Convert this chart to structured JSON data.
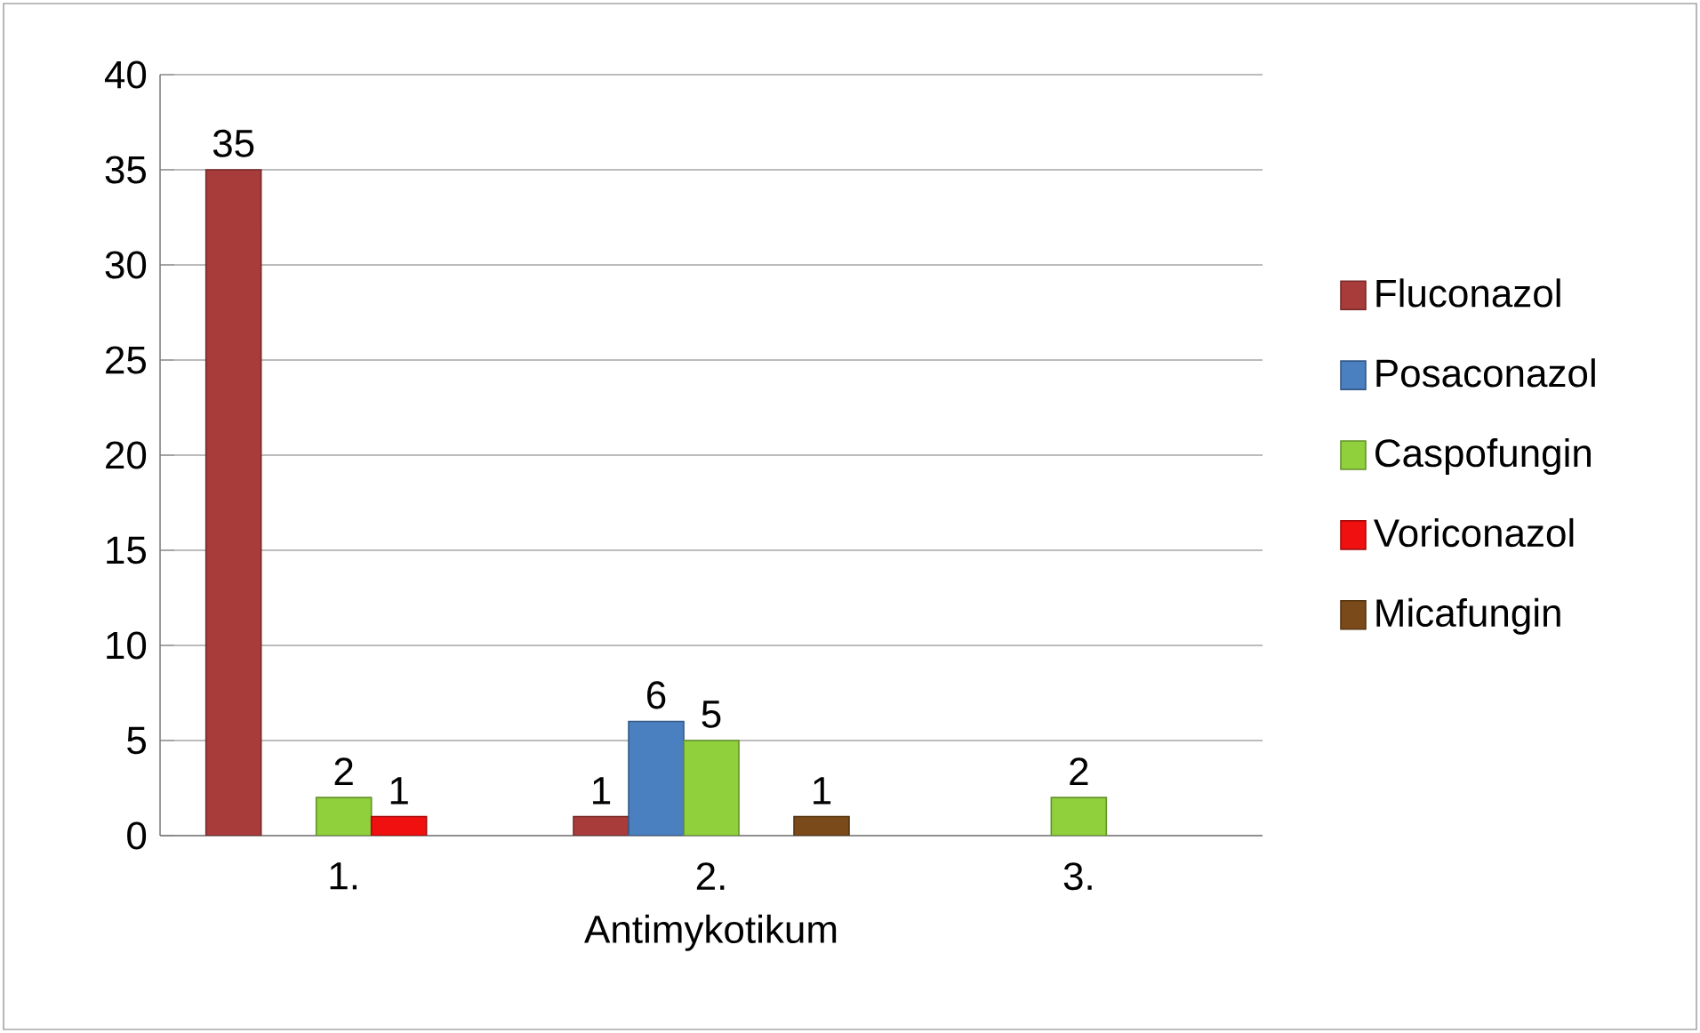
{
  "chart_data": {
    "type": "bar",
    "xlabel": "Antimykotikum",
    "categories": [
      "1.",
      "2.",
      "3."
    ],
    "series": [
      {
        "name": "Fluconazol",
        "color": "#a83c3a",
        "values": [
          35,
          1,
          null
        ]
      },
      {
        "name": "Posaconazol",
        "color": "#4a7fc0",
        "values": [
          null,
          6,
          null
        ]
      },
      {
        "name": "Caspofungin",
        "color": "#8fd03c",
        "values": [
          2,
          5,
          2
        ]
      },
      {
        "name": "Voriconazol",
        "color": "#f01010",
        "values": [
          1,
          null,
          null
        ]
      },
      {
        "name": "Micafungin",
        "color": "#7a4a1a",
        "values": [
          null,
          1,
          null
        ]
      }
    ],
    "ylim": [
      0,
      40
    ],
    "yticks": [
      0,
      5,
      10,
      15,
      20,
      25,
      30,
      35,
      40
    ],
    "grid": "y",
    "legend": "right",
    "data_labels": true
  }
}
